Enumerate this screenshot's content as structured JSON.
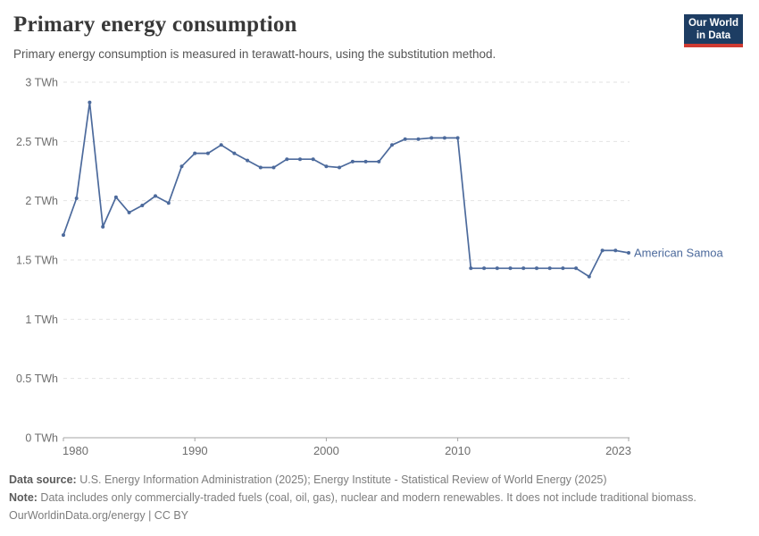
{
  "header": {
    "title": "Primary energy consumption",
    "subtitle": "Primary energy consumption is measured in terawatt-hours, using the substitution method.",
    "logo": {
      "line1": "Our World",
      "line2": "in Data",
      "bg_color": "#1d3d63",
      "accent_color": "#cf3b32"
    }
  },
  "chart_data": {
    "type": "line",
    "title": "Primary energy consumption",
    "xlabel": "",
    "ylabel": "TWh",
    "xlim": [
      1980,
      2023
    ],
    "ylim": [
      0,
      3
    ],
    "grid": "horizontal-dashed",
    "legend_position": "end-of-line-label",
    "line_color": "#4C6A9C",
    "grid_color": "#e2e2e2",
    "axis_color": "#a5a5a5",
    "tick_label_color": "#6e6e6e",
    "x_ticks": [
      {
        "year": 1980,
        "label": "1980",
        "align": "start"
      },
      {
        "year": 1990,
        "label": "1990",
        "align": "middle"
      },
      {
        "year": 2000,
        "label": "2000",
        "align": "middle"
      },
      {
        "year": 2010,
        "label": "2010",
        "align": "middle"
      },
      {
        "year": 2023,
        "label": "2023",
        "align": "end"
      }
    ],
    "y_ticks": [
      {
        "v": 0,
        "label": "0 TWh"
      },
      {
        "v": 0.5,
        "label": "0.5 TWh"
      },
      {
        "v": 1,
        "label": "1 TWh"
      },
      {
        "v": 1.5,
        "label": "1.5 TWh"
      },
      {
        "v": 2,
        "label": "2 TWh"
      },
      {
        "v": 2.5,
        "label": "2.5 TWh"
      },
      {
        "v": 3,
        "label": "3 TWh"
      }
    ],
    "series": [
      {
        "name": "American Samoa",
        "color": "#4C6A9C",
        "x": [
          1980,
          1981,
          1982,
          1983,
          1984,
          1985,
          1986,
          1987,
          1988,
          1989,
          1990,
          1991,
          1992,
          1993,
          1994,
          1995,
          1996,
          1997,
          1998,
          1999,
          2000,
          2001,
          2002,
          2003,
          2004,
          2005,
          2006,
          2007,
          2008,
          2009,
          2010,
          2011,
          2012,
          2013,
          2014,
          2015,
          2016,
          2017,
          2018,
          2019,
          2020,
          2021,
          2022,
          2023
        ],
        "values": [
          1.71,
          2.02,
          2.83,
          1.78,
          2.03,
          1.9,
          1.96,
          2.04,
          1.98,
          2.29,
          2.4,
          2.4,
          2.47,
          2.4,
          2.34,
          2.28,
          2.28,
          2.35,
          2.35,
          2.35,
          2.29,
          2.28,
          2.33,
          2.33,
          2.33,
          2.47,
          2.52,
          2.52,
          2.53,
          2.53,
          2.53,
          1.43,
          1.43,
          1.43,
          1.43,
          1.43,
          1.43,
          1.43,
          1.43,
          1.43,
          1.36,
          1.58,
          1.58,
          1.56
        ]
      }
    ]
  },
  "footer": {
    "datasource_label": "Data source:",
    "datasource_text": " U.S. Energy Information Administration (2025); Energy Institute - Statistical Review of World Energy (2025)",
    "note_label": "Note:",
    "note_text": " Data includes only commercially-traded fuels (coal, oil, gas), nuclear and modern renewables. It does not include traditional biomass.",
    "license_text": "OurWorldinData.org/energy | CC BY"
  }
}
